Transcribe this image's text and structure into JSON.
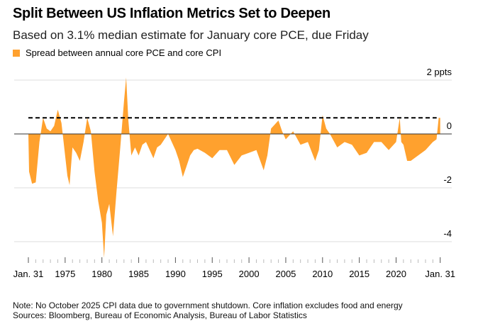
{
  "title": "Split Between US Inflation Metrics Set to Deepen",
  "subtitle": "Based on 3.1% median estimate for January core PCE, due Friday",
  "legend": [
    {
      "label": "Spread between annual core PCE and core CPI",
      "color": "#FFA12E"
    }
  ],
  "note": "Note: No October 2025 CPI data due to government shutdown. Core inflation excludes food and energy",
  "sources": "Sources: Bloomberg, Bureau of Economic Analysis, Bureau of Labor Statistics",
  "chart_data": {
    "type": "area",
    "unit": "ppts",
    "ylim": [
      -4.7,
      2.2
    ],
    "xlim": [
      1970,
      2026.1
    ],
    "grid": true,
    "yticks": [
      {
        "v": 2,
        "label": "2 ppts"
      },
      {
        "v": 0,
        "label": "0"
      },
      {
        "v": -2,
        "label": "-2"
      },
      {
        "v": -4,
        "label": "-4"
      }
    ],
    "xticks": [
      {
        "v": 1970,
        "label": "Jan. 31"
      },
      {
        "v": 1975,
        "label": "1975"
      },
      {
        "v": 1980,
        "label": "1980"
      },
      {
        "v": 1985,
        "label": "1985"
      },
      {
        "v": 1990,
        "label": "1990"
      },
      {
        "v": 1995,
        "label": "1995"
      },
      {
        "v": 2000,
        "label": "2000"
      },
      {
        "v": 2005,
        "label": "2005"
      },
      {
        "v": 2010,
        "label": "2010"
      },
      {
        "v": 2015,
        "label": "2015"
      },
      {
        "v": 2020,
        "label": "2020"
      },
      {
        "v": 2026,
        "label": "Jan. 31"
      }
    ],
    "reference_line": {
      "value": 0.6,
      "style": "dashed",
      "x": [
        1970,
        2026
      ]
    },
    "series": [
      {
        "color": "#FFA12E",
        "x": [
          1970,
          1970.1,
          1970.5,
          1971,
          1971.5,
          1972,
          1972.5,
          1973,
          1973.5,
          1974,
          1974.5,
          1975,
          1975.3,
          1975.6,
          1976,
          1976.5,
          1977,
          1977.5,
          1978,
          1978.5,
          1979,
          1979.5,
          1980,
          1980.3,
          1980.6,
          1981,
          1981.5,
          1982,
          1982.5,
          1983,
          1983.3,
          1983.6,
          1984,
          1984.5,
          1985,
          1985.5,
          1986,
          1986.5,
          1987,
          1987.5,
          1988,
          1988.5,
          1989,
          1989.5,
          1990,
          1990.5,
          1991,
          1991.5,
          1992,
          1992.5,
          1993,
          1994,
          1995,
          1996,
          1997,
          1998,
          1999,
          2000,
          2001,
          2002,
          2002.5,
          2003,
          2004,
          2004.5,
          2005,
          2006,
          2007,
          2008,
          2009,
          2009.5,
          2010,
          2010.5,
          2011,
          2012,
          2013,
          2014,
          2015,
          2016,
          2017,
          2018,
          2019,
          2020,
          2020.5,
          2020.7,
          2021,
          2021.5,
          2022,
          2023,
          2024,
          2025,
          2025.5,
          2025.8,
          2026
        ],
        "values": [
          0,
          -1.4,
          -1.85,
          -1.8,
          -0.3,
          0.6,
          0.2,
          0.1,
          0.3,
          0.9,
          0.4,
          -0.8,
          -1.55,
          -1.9,
          -0.5,
          -0.7,
          -1.0,
          -0.3,
          0.6,
          0.1,
          -1.4,
          -2.5,
          -3.3,
          -4.6,
          -3.0,
          -2.6,
          -3.8,
          -2.1,
          -0.5,
          1.2,
          2.1,
          0.5,
          -0.8,
          -0.5,
          -0.8,
          -0.4,
          -0.3,
          -0.6,
          -0.9,
          -0.5,
          -0.4,
          -0.2,
          0,
          -0.3,
          -0.6,
          -1.0,
          -1.6,
          -1.2,
          -0.8,
          -0.6,
          -0.55,
          -0.7,
          -0.9,
          -0.6,
          -0.6,
          -1.15,
          -0.8,
          -0.7,
          -0.6,
          -1.35,
          -0.8,
          0.2,
          0.5,
          0.1,
          -0.2,
          0.1,
          -0.4,
          -0.3,
          -1.0,
          -0.6,
          0.7,
          0.2,
          0,
          -0.5,
          -0.3,
          -0.4,
          -0.8,
          -0.7,
          -0.3,
          -0.3,
          -0.6,
          -0.3,
          0.6,
          -0.3,
          -0.4,
          -1.0,
          -1.0,
          -0.8,
          -0.6,
          -0.3,
          -0.2,
          0.6,
          0.6
        ]
      }
    ]
  }
}
